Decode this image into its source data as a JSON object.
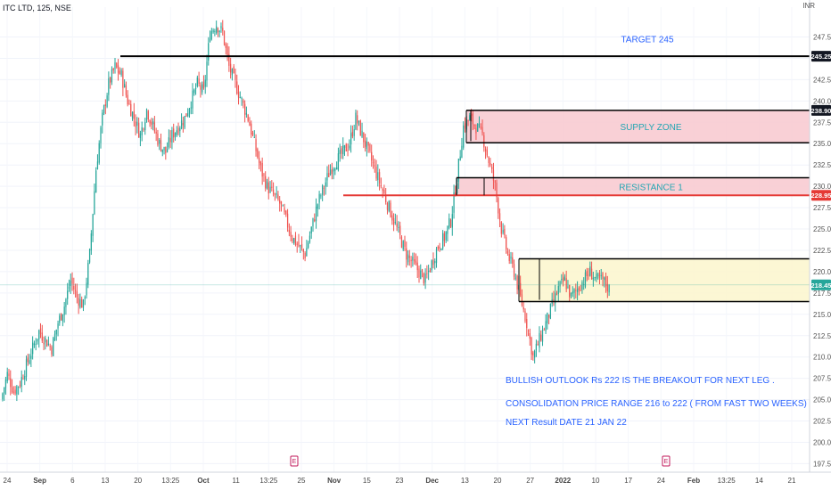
{
  "header": {
    "symbol_line": "ITC LTD, 125, NSE",
    "currency": "INR"
  },
  "colors": {
    "up": "#26a69a",
    "down": "#ef5350",
    "supply_fill": "#f8c8cf",
    "consol_fill": "#fbf6cc",
    "annotation_text": "#2962ff",
    "zone_text": "#22a6b3",
    "red_price": "#e53935",
    "last_price": "#26a69a"
  },
  "chart_data": {
    "type": "candlestick",
    "y_axis": {
      "ylim": [
        196.5,
        251.0
      ],
      "tick_labels": [
        "247.50",
        "245.00",
        "242.50",
        "240.00",
        "237.50",
        "235.00",
        "232.50",
        "230.00",
        "227.50",
        "225.00",
        "222.50",
        "220.00",
        "217.50",
        "215.00",
        "212.50",
        "210.00",
        "207.50",
        "205.00",
        "202.50",
        "200.00",
        "197.50"
      ],
      "tick_values": [
        247.5,
        245.0,
        242.5,
        240.0,
        237.5,
        235.0,
        232.5,
        230.0,
        227.5,
        225.0,
        222.5,
        220.0,
        217.5,
        215.0,
        212.5,
        210.0,
        207.5,
        205.0,
        202.5,
        200.0,
        197.5
      ],
      "price_tags": [
        {
          "label": "245.25",
          "value": 245.25,
          "style": "black"
        },
        {
          "label": "238.90",
          "value": 238.9,
          "style": "black"
        },
        {
          "label": "228.95",
          "value": 228.95,
          "style": "red"
        },
        {
          "label": "218.45",
          "value": 218.45,
          "style": "green"
        }
      ]
    },
    "x_axis": {
      "tick_labels": [
        "24",
        "Sep",
        "6",
        "13",
        "20",
        "13:25",
        "Oct",
        "11",
        "13:25",
        "25",
        "Nov",
        "15",
        "23",
        "Dec",
        "13",
        "20",
        "27",
        "2022",
        "10",
        "17",
        "24",
        "Feb",
        "13:25",
        "14",
        "21"
      ],
      "bold_labels": [
        "Sep",
        "Oct",
        "Nov",
        "Dec",
        "2022",
        "Feb"
      ]
    },
    "candle_path_closes": [
      205,
      208,
      206,
      207,
      209,
      211,
      213,
      212,
      211,
      214,
      216,
      219,
      217,
      216,
      222,
      232,
      238,
      242,
      244,
      243,
      240,
      238,
      236,
      239,
      237,
      235,
      234,
      236,
      237,
      238,
      240,
      242,
      241,
      248,
      249,
      248,
      244,
      242,
      240,
      238,
      235,
      232,
      230,
      229,
      228,
      226,
      224,
      223,
      222,
      225,
      228,
      230,
      232,
      233,
      234,
      235,
      238,
      236,
      234,
      232,
      230,
      228,
      226,
      224,
      222,
      221,
      220,
      219,
      221,
      223,
      224,
      226,
      231,
      237,
      238,
      237,
      236,
      233,
      230,
      225,
      222,
      220,
      217,
      214,
      210,
      212,
      214,
      216,
      218,
      219,
      217,
      218,
      219,
      220,
      219,
      219,
      218
    ],
    "lines": [
      {
        "name": "target-line",
        "value": 245.25
      },
      {
        "name": "supply-top-line",
        "value": 238.9
      },
      {
        "name": "supply-bottom-line",
        "value": 235.1
      },
      {
        "name": "resistance-top-line",
        "value": 231.0
      },
      {
        "name": "resistance-red-line",
        "value": 228.95
      },
      {
        "name": "consolidation-top-line",
        "value": 221.5
      },
      {
        "name": "consolidation-bottom-line",
        "value": 216.5
      }
    ],
    "zones": [
      {
        "name": "supply-zone",
        "top": 238.9,
        "bottom": 235.1,
        "label": "SUPPLY ZONE"
      },
      {
        "name": "resistance-zone",
        "top": 231.0,
        "bottom": 228.95,
        "label": "RESISTANCE 1"
      },
      {
        "name": "consolidation-zone",
        "top": 221.5,
        "bottom": 216.5,
        "label": ""
      }
    ],
    "annotations": {
      "target": "TARGET 245",
      "bullish": "BULLISH OUTLOOK Rs 222 IS THE BREAKOUT FOR NEXT LEG .",
      "consolidation": "CONSOLIDATION PRICE RANGE  216 to 222 ( FROM  FAST TWO WEEKS)",
      "result": "NEXT Result DATE 21 JAN 22"
    },
    "event_markers": [
      "E",
      "E"
    ]
  }
}
